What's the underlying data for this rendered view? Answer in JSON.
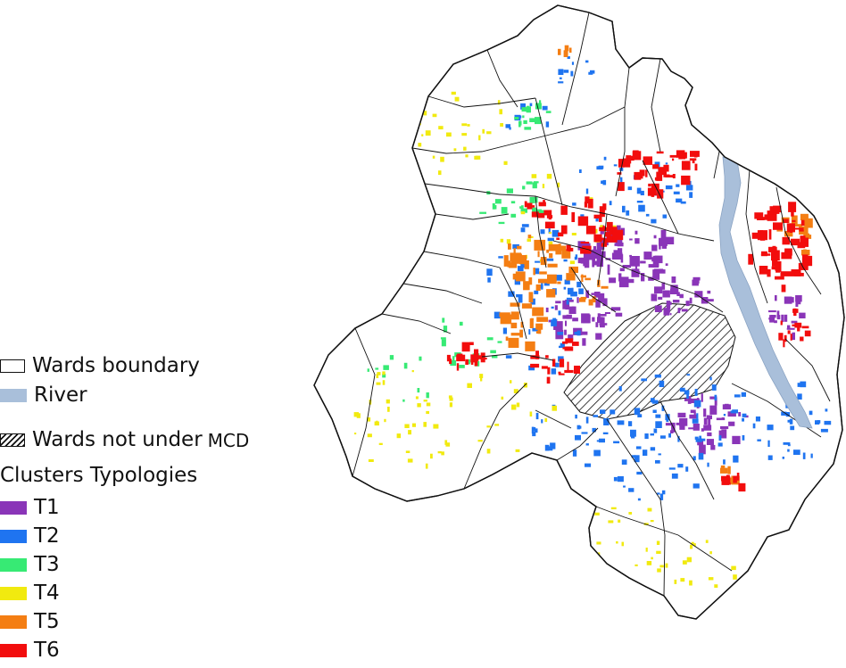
{
  "legend": {
    "wards_boundary": "Wards boundary",
    "river": "River",
    "wards_not_under": "Wards not under",
    "wards_not_under_suffix": "MCD",
    "cluster_title": "Clusters Typologies",
    "typologies": [
      {
        "label": "T1",
        "color": "#8a35b8"
      },
      {
        "label": "T2",
        "color": "#1f74f0"
      },
      {
        "label": "T3",
        "color": "#37ea74"
      },
      {
        "label": "T4",
        "color": "#f1ea0f"
      },
      {
        "label": "T5",
        "color": "#f47e13"
      },
      {
        "label": "T6",
        "color": "#f20d0d"
      }
    ],
    "river_color": "#a9bfda"
  }
}
